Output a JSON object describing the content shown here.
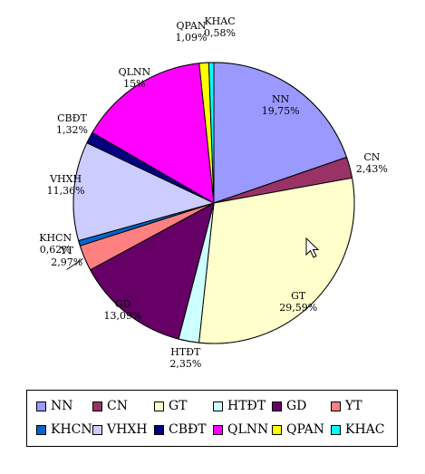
{
  "chart_data": {
    "type": "pie",
    "title": "",
    "categories": [
      "NN",
      "CN",
      "GT",
      "HTĐT",
      "GD",
      "YT",
      "KHCN",
      "VHXH",
      "CBĐT",
      "QLNN",
      "QPAN",
      "KHAC"
    ],
    "values": [
      19.75,
      2.43,
      29.59,
      2.35,
      13.09,
      2.97,
      0.62,
      11.36,
      1.32,
      15,
      1.09,
      0.58
    ],
    "value_labels": [
      "19,75%",
      "2,43%",
      "29,59%",
      "2,35%",
      "13,09%",
      "2,97%",
      "0,62%",
      "11,36%",
      "1,32%",
      "15%",
      "1,09%",
      "0,58%"
    ],
    "colors": [
      "#9999ff",
      "#993366",
      "#ffffcc",
      "#ccffff",
      "#660066",
      "#ff8080",
      "#0066cc",
      "#ccccff",
      "#000080",
      "#ff00ff",
      "#ffff00",
      "#00ffff"
    ],
    "start_angle_deg": 0,
    "direction": "clockwise",
    "legend": {
      "position": "bottom",
      "columns": 6
    },
    "grid": false
  }
}
